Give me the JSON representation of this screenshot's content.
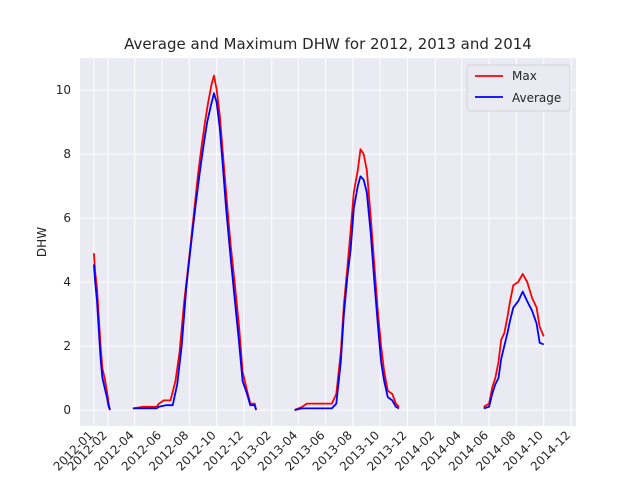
{
  "chart_data": {
    "type": "line",
    "title": "Average and Maximum DHW for 2012, 2013 and 2014",
    "xlabel": "",
    "ylabel": "DHW",
    "ylim": [
      -0.5,
      11.0
    ],
    "xlim": [
      "2011-12-01",
      "2014-12-12"
    ],
    "yticks": [
      0,
      2,
      4,
      6,
      8,
      10
    ],
    "xticks": [
      "2012-01",
      "2012-02",
      "2012-04",
      "2012-06",
      "2012-08",
      "2012-10",
      "2012-12",
      "2013-02",
      "2013-04",
      "2013-06",
      "2013-08",
      "2013-10",
      "2013-12",
      "2014-02",
      "2014-04",
      "2014-06",
      "2014-08",
      "2014-10",
      "2014-12"
    ],
    "grid": true,
    "legend_position": "top-right",
    "series": [
      {
        "name": "Max",
        "color": "#ff0000",
        "segments": [
          [
            [
              "2012-01-01",
              4.9
            ],
            [
              "2012-01-04",
              4.3
            ],
            [
              "2012-01-08",
              3.8
            ],
            [
              "2012-01-12",
              2.9
            ],
            [
              "2012-01-16",
              2.0
            ],
            [
              "2012-01-20",
              1.3
            ],
            [
              "2012-01-25",
              1.0
            ],
            [
              "2012-01-30",
              0.6
            ],
            [
              "2012-02-03",
              0.2
            ],
            [
              "2012-02-06",
              0.0
            ]
          ],
          [
            [
              "2012-03-28",
              0.05
            ],
            [
              "2012-04-20",
              0.1
            ],
            [
              "2012-05-20",
              0.1
            ],
            [
              "2012-05-25",
              0.2
            ],
            [
              "2012-06-05",
              0.3
            ],
            [
              "2012-06-20",
              0.3
            ],
            [
              "2012-07-01",
              0.9
            ],
            [
              "2012-07-10",
              1.8
            ],
            [
              "2012-07-20",
              3.3
            ],
            [
              "2012-08-01",
              4.8
            ],
            [
              "2012-08-10",
              6.0
            ],
            [
              "2012-08-20",
              7.3
            ],
            [
              "2012-08-28",
              8.2
            ],
            [
              "2012-09-05",
              9.0
            ],
            [
              "2012-09-12",
              9.6
            ],
            [
              "2012-09-20",
              10.2
            ],
            [
              "2012-09-25",
              10.45
            ],
            [
              "2012-10-01",
              10.0
            ],
            [
              "2012-10-08",
              9.2
            ],
            [
              "2012-10-15",
              8.0
            ],
            [
              "2012-10-22",
              6.8
            ],
            [
              "2012-11-01",
              5.2
            ],
            [
              "2012-11-10",
              4.0
            ],
            [
              "2012-11-20",
              2.6
            ],
            [
              "2012-11-28",
              1.2
            ],
            [
              "2012-12-08",
              0.6
            ],
            [
              "2012-12-15",
              0.2
            ],
            [
              "2012-12-25",
              0.2
            ],
            [
              "2012-12-28",
              0.0
            ]
          ],
          [
            [
              "2013-03-24",
              0.0
            ],
            [
              "2013-04-10",
              0.1
            ],
            [
              "2013-04-20",
              0.2
            ],
            [
              "2013-05-20",
              0.2
            ],
            [
              "2013-06-15",
              0.2
            ],
            [
              "2013-06-25",
              0.5
            ],
            [
              "2013-07-05",
              1.8
            ],
            [
              "2013-07-12",
              3.3
            ],
            [
              "2013-07-20",
              4.5
            ],
            [
              "2013-07-27",
              5.6
            ],
            [
              "2013-08-03",
              6.8
            ],
            [
              "2013-08-12",
              7.5
            ],
            [
              "2013-08-18",
              8.15
            ],
            [
              "2013-08-25",
              8.0
            ],
            [
              "2013-09-01",
              7.5
            ],
            [
              "2013-09-10",
              6.0
            ],
            [
              "2013-09-18",
              4.5
            ],
            [
              "2013-09-25",
              3.2
            ],
            [
              "2013-10-03",
              2.0
            ],
            [
              "2013-10-10",
              1.2
            ],
            [
              "2013-10-18",
              0.6
            ],
            [
              "2013-10-28",
              0.5
            ],
            [
              "2013-11-05",
              0.2
            ],
            [
              "2013-11-12",
              0.1
            ]
          ],
          [
            [
              "2014-05-20",
              0.1
            ],
            [
              "2014-06-01",
              0.2
            ],
            [
              "2014-06-08",
              0.7
            ],
            [
              "2014-06-15",
              1.0
            ],
            [
              "2014-06-22",
              1.5
            ],
            [
              "2014-06-28",
              2.2
            ],
            [
              "2014-07-05",
              2.4
            ],
            [
              "2014-07-12",
              2.9
            ],
            [
              "2014-07-18",
              3.4
            ],
            [
              "2014-07-25",
              3.9
            ],
            [
              "2014-08-05",
              4.0
            ],
            [
              "2014-08-15",
              4.25
            ],
            [
              "2014-08-25",
              4.0
            ],
            [
              "2014-09-05",
              3.5
            ],
            [
              "2014-09-15",
              3.2
            ],
            [
              "2014-09-22",
              2.6
            ],
            [
              "2014-10-01",
              2.3
            ]
          ]
        ]
      },
      {
        "name": "Average",
        "color": "#0000ff",
        "segments": [
          [
            [
              "2012-01-01",
              4.55
            ],
            [
              "2012-01-04",
              4.0
            ],
            [
              "2012-01-08",
              3.4
            ],
            [
              "2012-01-12",
              2.5
            ],
            [
              "2012-01-16",
              1.6
            ],
            [
              "2012-01-20",
              1.0
            ],
            [
              "2012-01-25",
              0.7
            ],
            [
              "2012-01-30",
              0.4
            ],
            [
              "2012-02-03",
              0.1
            ],
            [
              "2012-02-06",
              0.0
            ]
          ],
          [
            [
              "2012-03-28",
              0.05
            ],
            [
              "2012-04-20",
              0.05
            ],
            [
              "2012-05-20",
              0.05
            ],
            [
              "2012-05-25",
              0.1
            ],
            [
              "2012-06-10",
              0.15
            ],
            [
              "2012-06-25",
              0.15
            ],
            [
              "2012-07-05",
              0.8
            ],
            [
              "2012-07-15",
              2.0
            ],
            [
              "2012-07-25",
              3.8
            ],
            [
              "2012-08-05",
              5.2
            ],
            [
              "2012-08-15",
              6.4
            ],
            [
              "2012-08-25",
              7.5
            ],
            [
              "2012-09-02",
              8.3
            ],
            [
              "2012-09-10",
              9.0
            ],
            [
              "2012-09-18",
              9.5
            ],
            [
              "2012-09-25",
              9.9
            ],
            [
              "2012-10-01",
              9.6
            ],
            [
              "2012-10-08",
              8.8
            ],
            [
              "2012-10-15",
              7.6
            ],
            [
              "2012-10-22",
              6.3
            ],
            [
              "2012-11-01",
              4.8
            ],
            [
              "2012-11-10",
              3.5
            ],
            [
              "2012-11-20",
              2.1
            ],
            [
              "2012-11-28",
              0.9
            ],
            [
              "2012-12-08",
              0.5
            ],
            [
              "2012-12-15",
              0.15
            ],
            [
              "2012-12-25",
              0.15
            ],
            [
              "2012-12-28",
              0.0
            ]
          ],
          [
            [
              "2013-03-24",
              0.0
            ],
            [
              "2013-04-10",
              0.05
            ],
            [
              "2013-04-20",
              0.05
            ],
            [
              "2013-05-20",
              0.05
            ],
            [
              "2013-06-15",
              0.05
            ],
            [
              "2013-06-25",
              0.2
            ],
            [
              "2013-07-05",
              1.5
            ],
            [
              "2013-07-12",
              3.0
            ],
            [
              "2013-07-20",
              4.2
            ],
            [
              "2013-07-27",
              5.0
            ],
            [
              "2013-08-03",
              6.3
            ],
            [
              "2013-08-12",
              7.0
            ],
            [
              "2013-08-18",
              7.3
            ],
            [
              "2013-08-25",
              7.2
            ],
            [
              "2013-09-01",
              6.8
            ],
            [
              "2013-09-10",
              5.5
            ],
            [
              "2013-09-18",
              4.0
            ],
            [
              "2013-09-25",
              2.8
            ],
            [
              "2013-10-03",
              1.5
            ],
            [
              "2013-10-10",
              0.9
            ],
            [
              "2013-10-18",
              0.4
            ],
            [
              "2013-10-28",
              0.3
            ],
            [
              "2013-11-05",
              0.1
            ],
            [
              "2013-11-12",
              0.05
            ]
          ],
          [
            [
              "2014-05-20",
              0.05
            ],
            [
              "2014-06-01",
              0.1
            ],
            [
              "2014-06-08",
              0.5
            ],
            [
              "2014-06-15",
              0.8
            ],
            [
              "2014-06-22",
              1.0
            ],
            [
              "2014-06-28",
              1.6
            ],
            [
              "2014-07-05",
              2.0
            ],
            [
              "2014-07-12",
              2.4
            ],
            [
              "2014-07-18",
              2.8
            ],
            [
              "2014-07-25",
              3.2
            ],
            [
              "2014-08-05",
              3.4
            ],
            [
              "2014-08-15",
              3.7
            ],
            [
              "2014-08-25",
              3.4
            ],
            [
              "2014-09-05",
              3.1
            ],
            [
              "2014-09-15",
              2.7
            ],
            [
              "2014-09-22",
              2.1
            ],
            [
              "2014-10-01",
              2.05
            ]
          ]
        ]
      }
    ]
  }
}
